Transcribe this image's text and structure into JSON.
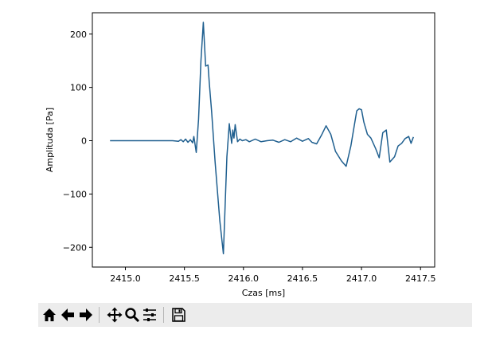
{
  "chart_data": {
    "type": "line",
    "title": "",
    "xlabel": "Czas [ms]",
    "ylabel": "Amplituda [Pa]",
    "xlim": [
      2414.72,
      2417.62
    ],
    "ylim": [
      -237,
      240
    ],
    "xticks": [
      2415.0,
      2415.5,
      2416.0,
      2416.5,
      2417.0,
      2417.5
    ],
    "xtick_labels": [
      "2415.0",
      "2415.5",
      "2416.0",
      "2416.5",
      "2417.0",
      "2417.5"
    ],
    "yticks": [
      200,
      100,
      0,
      -100,
      -200
    ],
    "ytick_labels": [
      "200",
      "100",
      "0",
      "−100",
      "−200"
    ],
    "grid": false,
    "series": [
      {
        "color": "#1f5f8f",
        "x": [
          2414.87,
          2415.2,
          2415.4,
          2415.45,
          2415.47,
          2415.49,
          2415.51,
          2415.53,
          2415.55,
          2415.57,
          2415.58,
          2415.6,
          2415.62,
          2415.64,
          2415.66,
          2415.68,
          2415.7,
          2415.71,
          2415.73,
          2415.76,
          2415.8,
          2415.83,
          2415.86,
          2415.88,
          2415.9,
          2415.91,
          2415.92,
          2415.93,
          2415.95,
          2415.97,
          2415.99,
          2416.02,
          2416.05,
          2416.1,
          2416.15,
          2416.2,
          2416.25,
          2416.3,
          2416.35,
          2416.4,
          2416.45,
          2416.5,
          2416.55,
          2416.58,
          2416.62,
          2416.66,
          2416.7,
          2416.74,
          2416.78,
          2416.83,
          2416.87,
          2416.91,
          2416.94,
          2416.96,
          2416.98,
          2417.0,
          2417.02,
          2417.05,
          2417.08,
          2417.12,
          2417.15,
          2417.18,
          2417.21,
          2417.24,
          2417.28,
          2417.31,
          2417.34,
          2417.37,
          2417.4,
          2417.42,
          2417.44
        ],
        "y": [
          0,
          0,
          0,
          -1,
          2,
          -2,
          3,
          -3,
          2,
          -4,
          8,
          -22,
          40,
          150,
          222,
          140,
          142,
          110,
          55,
          -40,
          -150,
          -212,
          -30,
          32,
          -5,
          20,
          5,
          30,
          -2,
          3,
          0,
          2,
          -2,
          3,
          -2,
          0,
          1,
          -3,
          2,
          -2,
          5,
          -1,
          4,
          -3,
          -6,
          10,
          28,
          12,
          -20,
          -38,
          -48,
          -10,
          30,
          56,
          60,
          58,
          35,
          12,
          5,
          -15,
          -32,
          15,
          20,
          -40,
          -30,
          -10,
          -5,
          4,
          8,
          -5,
          7
        ]
      }
    ]
  },
  "toolbar": {
    "buttons": [
      {
        "name": "home-icon",
        "label": "Home"
      },
      {
        "name": "arrow-left-icon",
        "label": "Back"
      },
      {
        "name": "arrow-right-icon",
        "label": "Forward"
      },
      {
        "name": "pan-move-icon",
        "label": "Pan"
      },
      {
        "name": "zoom-magnifier-icon",
        "label": "Zoom"
      },
      {
        "name": "subplots-sliders-icon",
        "label": "Subplots"
      },
      {
        "name": "save-floppy-icon",
        "label": "Save"
      }
    ]
  }
}
